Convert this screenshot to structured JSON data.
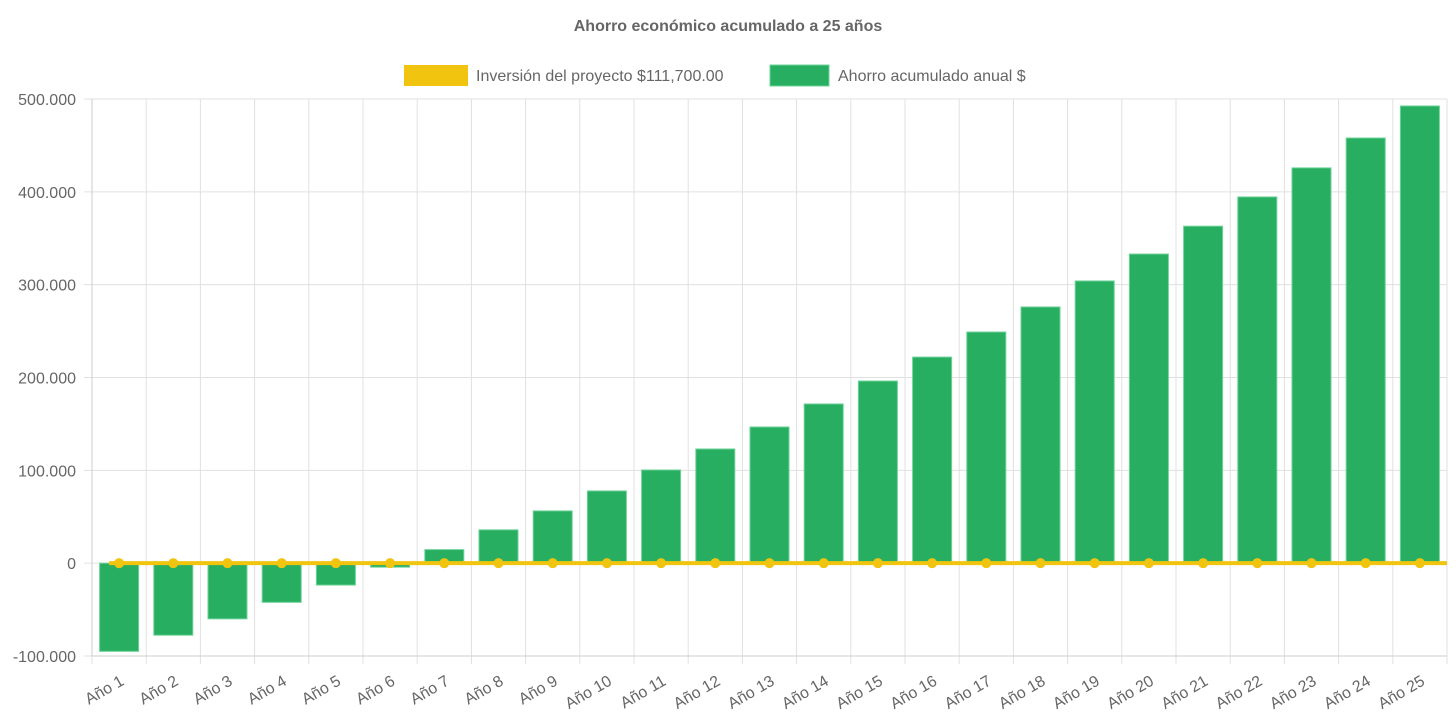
{
  "chart_data": {
    "type": "bar",
    "title": "Ahorro económico acumulado a 25 años",
    "categories": [
      "Año 1",
      "Año 2",
      "Año 3",
      "Año 4",
      "Año 5",
      "Año 6",
      "Año 7",
      "Año 8",
      "Año 9",
      "Año 10",
      "Año 11",
      "Año 12",
      "Año 13",
      "Año 14",
      "Año 15",
      "Año 16",
      "Año 17",
      "Año 18",
      "Año 19",
      "Año 20",
      "Año 21",
      "Año 22",
      "Año 23",
      "Año 24",
      "Año 25"
    ],
    "series": [
      {
        "name": "Inversión del proyecto $111,700.00",
        "type": "line",
        "color": "#f1c40f",
        "values": [
          0,
          0,
          0,
          0,
          0,
          0,
          0,
          0,
          0,
          0,
          0,
          0,
          0,
          0,
          0,
          0,
          0,
          0,
          0,
          0,
          0,
          0,
          0,
          0,
          0
        ]
      },
      {
        "name": "Ahorro acumulado anual $",
        "type": "bar",
        "color": "#27ae60",
        "values": [
          -95000,
          -77600,
          -60000,
          -42200,
          -23600,
          -4300,
          14600,
          35900,
          56300,
          77800,
          100400,
          123000,
          146700,
          171500,
          196200,
          222000,
          249000,
          276000,
          304000,
          333000,
          363000,
          394500,
          425800,
          458000,
          492500
        ]
      }
    ],
    "yticks": [
      "500.000",
      "400.000",
      "300.000",
      "200.000",
      "100.000",
      "0",
      "-100.000"
    ],
    "ylim": [
      -100000,
      500000
    ],
    "grid": true,
    "legend": "top"
  }
}
